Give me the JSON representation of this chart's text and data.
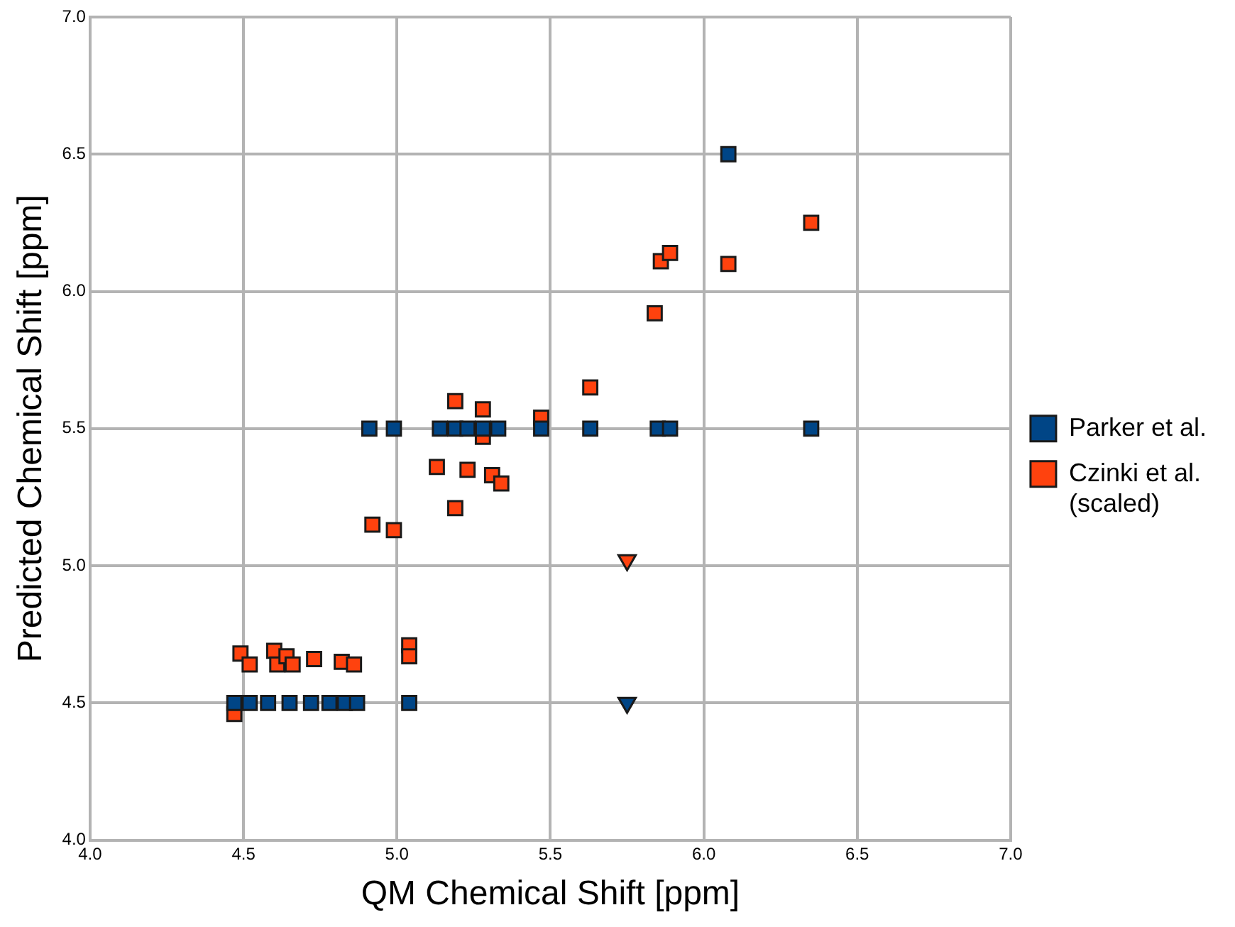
{
  "chart_data": {
    "type": "scatter",
    "xlabel": "QM Chemical Shift [ppm]",
    "ylabel": "Predicted Chemical Shift [ppm]",
    "xlim": [
      4.0,
      7.0
    ],
    "xticks": [
      {
        "value": 4,
        "label": "4.0"
      },
      4.5,
      {
        "value": 5,
        "label": "5.0"
      },
      5.5,
      {
        "value": 6,
        "label": "6.0"
      },
      6.5,
      {
        "value": 7,
        "label": "7.0"
      }
    ],
    "ylim": [
      4.0,
      7.0
    ],
    "yticks": [
      {
        "value": 4,
        "label": "4.0"
      },
      4.5,
      {
        "value": 5,
        "label": "5.0"
      },
      5.5,
      {
        "value": 6,
        "label": "6.0"
      },
      6.5,
      {
        "value": 7,
        "label": "7.0"
      }
    ],
    "grid": true,
    "legend": "right",
    "marker": "square",
    "series": [
      {
        "name": "Parker et al.",
        "color": "#004586",
        "x": [
          4.47,
          4.52,
          4.58,
          4.65,
          4.72,
          4.78,
          4.83,
          4.87,
          5.04,
          4.91,
          4.99,
          5.14,
          5.19,
          5.23,
          5.28,
          5.33,
          5.47,
          5.63,
          5.85,
          5.89,
          6.35,
          6.08
        ],
        "values": [
          4.5,
          4.5,
          4.5,
          4.5,
          4.5,
          4.5,
          4.5,
          4.5,
          4.5,
          5.5,
          5.5,
          5.5,
          5.5,
          5.5,
          5.5,
          5.5,
          5.5,
          5.5,
          5.5,
          5.5,
          5.5,
          6.5
        ]
      },
      {
        "name": "Czinki et al. (scaled)",
        "color": "#ff420e",
        "x": [
          4.47,
          4.49,
          4.52,
          4.6,
          4.61,
          4.64,
          4.66,
          4.73,
          4.82,
          4.86,
          5.04,
          5.04,
          4.92,
          4.99,
          5.13,
          5.19,
          5.19,
          5.23,
          5.28,
          5.28,
          5.31,
          5.34,
          5.47,
          5.63,
          5.84,
          5.86,
          5.89,
          6.08,
          6.35
        ],
        "values": [
          4.46,
          4.68,
          4.64,
          4.69,
          4.64,
          4.67,
          4.64,
          4.66,
          4.65,
          4.64,
          4.71,
          4.67,
          5.15,
          5.13,
          5.36,
          5.21,
          5.6,
          5.35,
          5.57,
          5.47,
          5.33,
          5.3,
          5.54,
          5.65,
          5.92,
          6.11,
          6.14,
          6.1,
          6.25
        ]
      },
      {
        "color": "#004586",
        "marker": "triangle",
        "x": [
          5.75
        ],
        "values": [
          4.5
        ]
      },
      {
        "color": "#ff420e",
        "marker": "triangle",
        "x": [
          5.75
        ],
        "values": [
          5.02
        ]
      }
    ]
  }
}
